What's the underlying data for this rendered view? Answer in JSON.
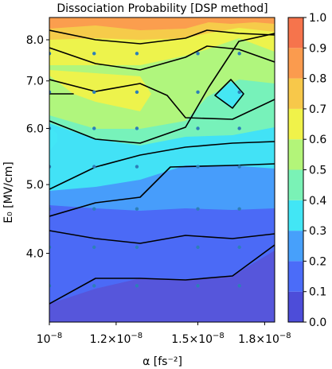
{
  "chart_data": {
    "type": "contourf",
    "title": "Dissociation Probability [DSP method]",
    "xlabel": "α [fs⁻²]",
    "ylabel": "E₀ [MV/cm]",
    "xscale": "log",
    "yscale": "log",
    "xlim": [
      1e-08,
      1.85e-08
    ],
    "ylim": [
      3.2,
      8.6
    ],
    "x_ticks": [
      {
        "value": 1e-08,
        "mant": "10",
        "exp": "−8"
      },
      {
        "value": 1.2e-08,
        "mant": "1.2×10",
        "exp": "−8"
      },
      {
        "value": 1.5e-08,
        "mant": "1.5×10",
        "exp": "−8"
      },
      {
        "value": 1.8e-08,
        "mant": "1.8×10",
        "exp": "−8"
      }
    ],
    "y_ticks": [
      {
        "value": 4.0,
        "label": "4.0"
      },
      {
        "value": 5.0,
        "label": "5.0"
      },
      {
        "value": 6.0,
        "label": "6.0"
      },
      {
        "value": 7.0,
        "label": "7.0"
      },
      {
        "value": 8.0,
        "label": "8.0"
      }
    ],
    "grid": false,
    "levels": [
      0.0,
      0.1,
      0.2,
      0.3,
      0.4,
      0.5,
      0.6,
      0.7,
      0.8,
      0.9,
      1.0
    ],
    "colorbar_ticks": [
      "0.0",
      "0.1",
      "0.2",
      "0.3",
      "0.4",
      "0.5",
      "0.6",
      "0.7",
      "0.8",
      "0.9",
      "1.0"
    ],
    "colorbar_colors": [
      "#4d4dd9",
      "#4b6cf8",
      "#47a0fb",
      "#42e6f5",
      "#7af2b6",
      "#b3f579",
      "#f0f24a",
      "#f7c84a",
      "#fb9b4e",
      "#f6744c",
      "#d45050"
    ],
    "band_colors": {
      "b0": "#4d4dd9",
      "b1": "#4b6cf8",
      "b2": "#47a0fb",
      "b3": "#42e6f5",
      "b4": "#7af2b6",
      "b5": "#b3f579",
      "b6": "#f0f24a",
      "b7": "#f7c84a",
      "b8": "#fb9b4e"
    },
    "sample_points": {
      "x": [
        1e-08,
        1.13e-08,
        1.27e-08,
        1.5e-08,
        1.68e-08
      ],
      "y": [
        3.6,
        4.08,
        4.62,
        5.3,
        6.0,
        6.75,
        7.65
      ]
    },
    "point_color": "#2d7fb8"
  }
}
